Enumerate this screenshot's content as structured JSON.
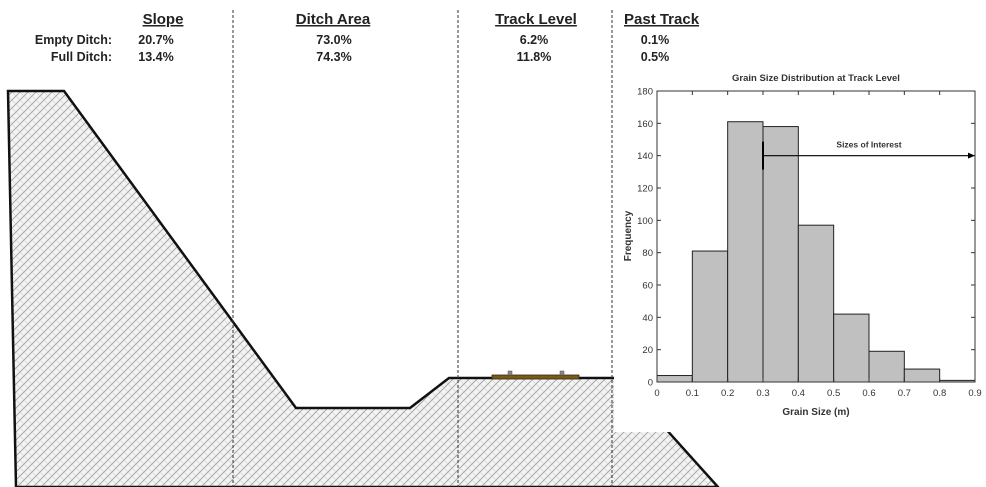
{
  "zones": [
    {
      "heading": "Slope",
      "empty": "20.7%",
      "full": "13.4%"
    },
    {
      "heading": "Ditch Area",
      "empty": "73.0%",
      "full": "74.3%"
    },
    {
      "heading": "Track Level",
      "empty": "6.2%",
      "full": "11.8%"
    },
    {
      "heading": "Past Track",
      "empty": "0.1%",
      "full": "0.5%"
    }
  ],
  "row_labels": {
    "empty": "Empty Ditch:",
    "full": "Full Ditch:"
  },
  "colors": {
    "bar": "#c0c0c0",
    "ground_outline": "#111111",
    "rail_pad": "#7a5a1a"
  },
  "chart_data": {
    "type": "bar",
    "title": "Grain Size Distribution at Track Level",
    "xlabel": "Grain Size (m)",
    "ylabel": "Frequency",
    "bin_edges": [
      0,
      0.1,
      0.2,
      0.3,
      0.4,
      0.5,
      0.6,
      0.7,
      0.8,
      0.9
    ],
    "values": [
      4,
      81,
      161,
      158,
      97,
      42,
      19,
      8,
      1
    ],
    "xlim": [
      0,
      0.9
    ],
    "ylim": [
      0,
      180
    ],
    "xticks": [
      "0",
      "0.1",
      "0.2",
      "0.3",
      "0.4",
      "0.5",
      "0.6",
      "0.7",
      "0.8",
      "0.9"
    ],
    "yticks": [
      "0",
      "20",
      "40",
      "60",
      "80",
      "100",
      "120",
      "140",
      "160",
      "180"
    ],
    "annotation": {
      "text": "Sizes of Interest",
      "from_x": 0.3,
      "to_x": 0.9,
      "y": 140
    }
  }
}
